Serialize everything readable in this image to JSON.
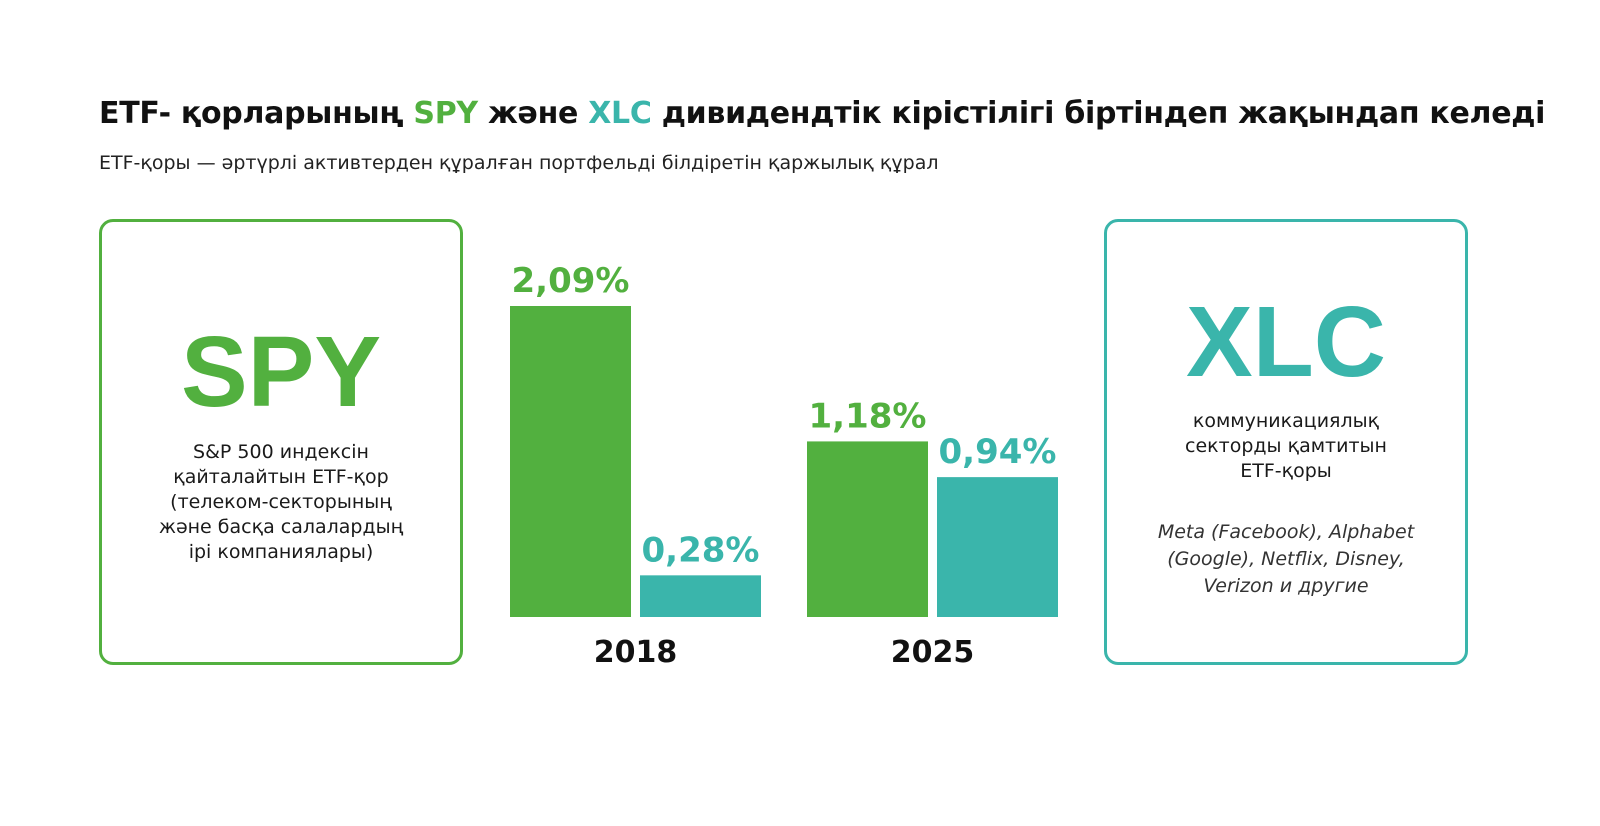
{
  "header": {
    "title_prefix": "ETF- қорларының ",
    "title_spy": "SPY",
    "title_mid": " және ",
    "title_xlc": "XLC",
    "title_suffix": " дивидендтік кірістілігі біртіндеп жақындап келеді",
    "subtitle": "ETF-қоры — әртүрлі активтерден құралған портфельді білдіретін қаржылық құрал"
  },
  "cards": {
    "spy": {
      "ticker": "SPY",
      "description": [
        "S&P 500 индексін",
        "қайталайтын ETF-қор",
        "(телеком-секторының",
        "және басқа салалардың",
        "ірі компаниялары)"
      ]
    },
    "xlc": {
      "ticker": "XLC",
      "description": [
        "коммуникациялық",
        "секторды қамтитын",
        "ETF-қоры"
      ],
      "examples": [
        "Meta (Facebook), Alphabet",
        "(Google), Netflix, Disney,",
        "Verizon и другие"
      ]
    }
  },
  "colors": {
    "spy": "#52b03f",
    "xlc": "#3ab5ab"
  },
  "chart_data": {
    "type": "bar",
    "title": "ETF- қорларының SPY және XLC дивидендтік кірістілігі біртіндеп жақындап келеді",
    "categories": [
      "2018",
      "2025"
    ],
    "series": [
      {
        "name": "SPY",
        "values": [
          2.09,
          1.18
        ],
        "labels": [
          "2,09%",
          "1,18%"
        ],
        "color": "#52b03f"
      },
      {
        "name": "XLC",
        "values": [
          0.28,
          0.94
        ],
        "labels": [
          "0,28%",
          "0,94%"
        ],
        "color": "#3ab5ab"
      }
    ],
    "xlabel": "",
    "ylabel": "",
    "ylim": [
      0,
      2.09
    ],
    "grid": false
  }
}
